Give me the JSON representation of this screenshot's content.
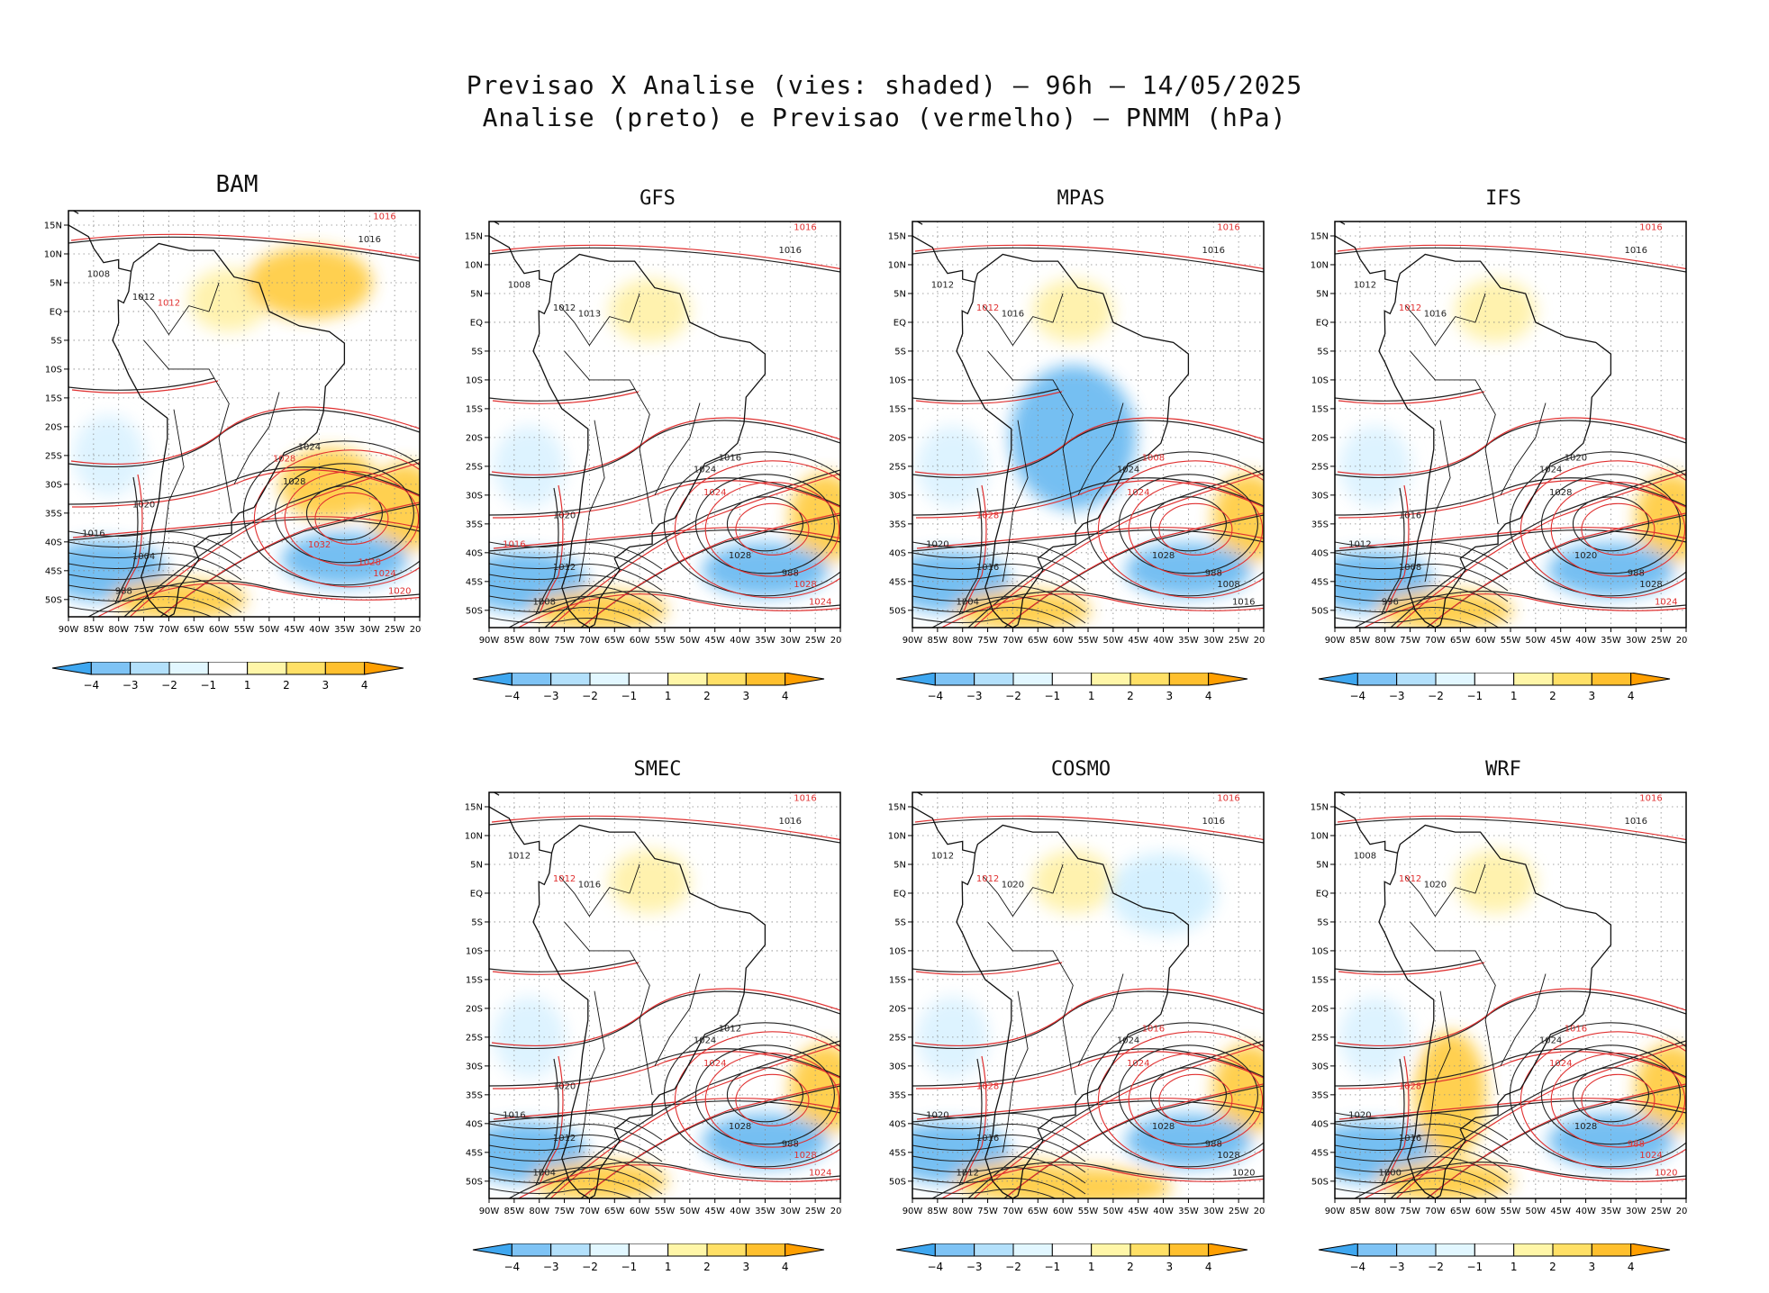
{
  "title": {
    "line1": "Previsao X Analise (vies: shaded) – 96h – 14/05/2025",
    "line2": "Analise (preto) e Previsao (vermelho) – PNMM (hPa)"
  },
  "axes": {
    "lat_labels": [
      "15N",
      "10N",
      "5N",
      "EQ",
      "5S",
      "10S",
      "15S",
      "20S",
      "25S",
      "30S",
      "35S",
      "40S",
      "45S",
      "50S"
    ],
    "lon_labels": [
      "90W",
      "85W",
      "80W",
      "75W",
      "70W",
      "65W",
      "60W",
      "55W",
      "50W",
      "45W",
      "40W",
      "35W",
      "30W",
      "25W",
      "20W"
    ]
  },
  "colorbar": {
    "labels": [
      "-4",
      "-3",
      "-2",
      "-1",
      "1",
      "2",
      "3",
      "4"
    ],
    "colors": [
      "#3fa7f0",
      "#7ec3f5",
      "#b3e0fb",
      "#e2f7ff",
      "#ffffff",
      "#fff6a8",
      "#ffe066",
      "#ffc02e",
      "#ff9f00"
    ]
  },
  "colors": {
    "analysis_contour": "#222222",
    "forecast_contour": "#e03030",
    "positive_bias": "#ffc830",
    "negative_bias": "#5db4f0"
  },
  "panels": [
    {
      "name": "BAM",
      "isobars": [
        {
          "text": "1016",
          "c": "k"
        },
        {
          "text": "1016",
          "c": "r"
        },
        {
          "text": "1008",
          "c": "k"
        },
        {
          "text": "1012",
          "c": "k"
        },
        {
          "text": "1012",
          "c": "r"
        },
        {
          "text": "1024",
          "c": "k"
        },
        {
          "text": "1028",
          "c": "r"
        },
        {
          "text": "1028",
          "c": "k"
        },
        {
          "text": "1032",
          "c": "r"
        },
        {
          "text": "1020",
          "c": "k"
        },
        {
          "text": "1016",
          "c": "k"
        },
        {
          "text": "1004",
          "c": "k"
        },
        {
          "text": "988",
          "c": "k"
        },
        {
          "text": "1028",
          "c": "r"
        },
        {
          "text": "1024",
          "c": "r"
        },
        {
          "text": "1020",
          "c": "r"
        }
      ]
    },
    {
      "name": "GFS",
      "isobars": [
        {
          "text": "1016",
          "c": "k"
        },
        {
          "text": "1016",
          "c": "r"
        },
        {
          "text": "1008",
          "c": "k"
        },
        {
          "text": "1012",
          "c": "k"
        },
        {
          "text": "1013",
          "c": "k"
        },
        {
          "text": "1016",
          "c": "k"
        },
        {
          "text": "1024",
          "c": "k"
        },
        {
          "text": "1024",
          "c": "r"
        },
        {
          "text": "1028",
          "c": "k"
        },
        {
          "text": "1020",
          "c": "k"
        },
        {
          "text": "1016",
          "c": "r"
        },
        {
          "text": "1012",
          "c": "k"
        },
        {
          "text": "1008",
          "c": "k"
        },
        {
          "text": "988",
          "c": "k"
        },
        {
          "text": "1028",
          "c": "r"
        },
        {
          "text": "1024",
          "c": "r"
        }
      ]
    },
    {
      "name": "MPAS",
      "isobars": [
        {
          "text": "1016",
          "c": "k"
        },
        {
          "text": "1016",
          "c": "r"
        },
        {
          "text": "1012",
          "c": "k"
        },
        {
          "text": "1012",
          "c": "r"
        },
        {
          "text": "1016",
          "c": "k"
        },
        {
          "text": "1008",
          "c": "r"
        },
        {
          "text": "1024",
          "c": "k"
        },
        {
          "text": "1024",
          "c": "r"
        },
        {
          "text": "1028",
          "c": "k"
        },
        {
          "text": "1028",
          "c": "r"
        },
        {
          "text": "1020",
          "c": "k"
        },
        {
          "text": "1016",
          "c": "k"
        },
        {
          "text": "1004",
          "c": "k"
        },
        {
          "text": "988",
          "c": "k"
        },
        {
          "text": "1008",
          "c": "k"
        },
        {
          "text": "1016",
          "c": "k"
        }
      ]
    },
    {
      "name": "IFS",
      "isobars": [
        {
          "text": "1016",
          "c": "k"
        },
        {
          "text": "1016",
          "c": "r"
        },
        {
          "text": "1012",
          "c": "k"
        },
        {
          "text": "1012",
          "c": "r"
        },
        {
          "text": "1016",
          "c": "k"
        },
        {
          "text": "1020",
          "c": "k"
        },
        {
          "text": "1024",
          "c": "k"
        },
        {
          "text": "1028",
          "c": "k"
        },
        {
          "text": "1020",
          "c": "k"
        },
        {
          "text": "1016",
          "c": "k"
        },
        {
          "text": "1012",
          "c": "k"
        },
        {
          "text": "1008",
          "c": "k"
        },
        {
          "text": "996",
          "c": "k"
        },
        {
          "text": "988",
          "c": "k"
        },
        {
          "text": "1028",
          "c": "k"
        },
        {
          "text": "1024",
          "c": "r"
        }
      ]
    },
    {
      "name": "SMEC",
      "isobars": [
        {
          "text": "1016",
          "c": "k"
        },
        {
          "text": "1016",
          "c": "r"
        },
        {
          "text": "1012",
          "c": "k"
        },
        {
          "text": "1012",
          "c": "r"
        },
        {
          "text": "1016",
          "c": "k"
        },
        {
          "text": "1012",
          "c": "k"
        },
        {
          "text": "1024",
          "c": "k"
        },
        {
          "text": "1024",
          "c": "r"
        },
        {
          "text": "1028",
          "c": "k"
        },
        {
          "text": "1020",
          "c": "k"
        },
        {
          "text": "1016",
          "c": "k"
        },
        {
          "text": "1012",
          "c": "k"
        },
        {
          "text": "1004",
          "c": "k"
        },
        {
          "text": "988",
          "c": "k"
        },
        {
          "text": "1028",
          "c": "r"
        },
        {
          "text": "1024",
          "c": "r"
        }
      ]
    },
    {
      "name": "COSMO",
      "isobars": [
        {
          "text": "1016",
          "c": "k"
        },
        {
          "text": "1016",
          "c": "r"
        },
        {
          "text": "1012",
          "c": "k"
        },
        {
          "text": "1012",
          "c": "r"
        },
        {
          "text": "1020",
          "c": "k"
        },
        {
          "text": "1016",
          "c": "r"
        },
        {
          "text": "1024",
          "c": "k"
        },
        {
          "text": "1024",
          "c": "r"
        },
        {
          "text": "1028",
          "c": "k"
        },
        {
          "text": "1028",
          "c": "r"
        },
        {
          "text": "1020",
          "c": "k"
        },
        {
          "text": "1016",
          "c": "k"
        },
        {
          "text": "1012",
          "c": "k"
        },
        {
          "text": "988",
          "c": "k"
        },
        {
          "text": "1028",
          "c": "k"
        },
        {
          "text": "1020",
          "c": "k"
        }
      ]
    },
    {
      "name": "WRF",
      "isobars": [
        {
          "text": "1016",
          "c": "k"
        },
        {
          "text": "1016",
          "c": "r"
        },
        {
          "text": "1008",
          "c": "k"
        },
        {
          "text": "1012",
          "c": "r"
        },
        {
          "text": "1020",
          "c": "k"
        },
        {
          "text": "1016",
          "c": "r"
        },
        {
          "text": "1024",
          "c": "k"
        },
        {
          "text": "1024",
          "c": "r"
        },
        {
          "text": "1028",
          "c": "k"
        },
        {
          "text": "1028",
          "c": "r"
        },
        {
          "text": "1020",
          "c": "k"
        },
        {
          "text": "1016",
          "c": "k"
        },
        {
          "text": "1000",
          "c": "k"
        },
        {
          "text": "988",
          "c": "r"
        },
        {
          "text": "1024",
          "c": "r"
        },
        {
          "text": "1020",
          "c": "r"
        }
      ]
    }
  ]
}
